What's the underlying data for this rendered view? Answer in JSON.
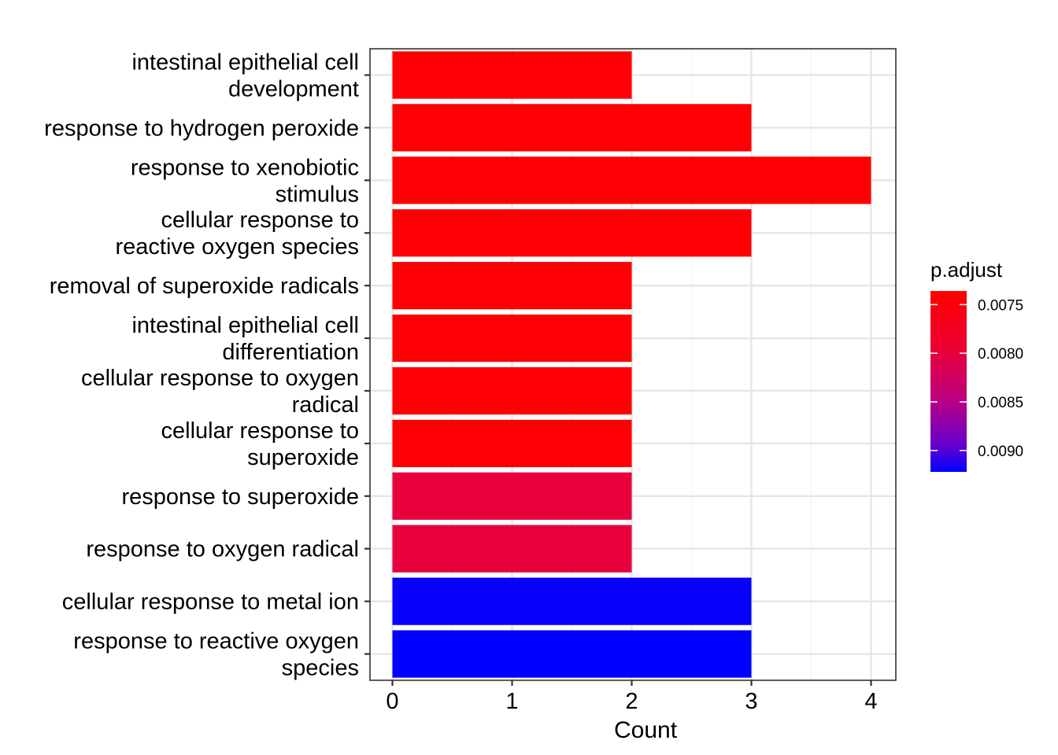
{
  "chart_data": {
    "type": "bar",
    "orientation": "horizontal",
    "xlabel": "Count",
    "ylabel": "",
    "xlim": [
      0,
      4.2
    ],
    "x_ticks": [
      0,
      1,
      2,
      3,
      4
    ],
    "grid": true,
    "legend_position": "right",
    "legend_title": "p.adjust",
    "legend_ticks": [
      {
        "value": 0.0075,
        "label": "0.0075"
      },
      {
        "value": 0.008,
        "label": "0.0080"
      },
      {
        "value": 0.0085,
        "label": "0.0085"
      },
      {
        "value": 0.009,
        "label": "0.0090"
      }
    ],
    "color_scale": {
      "min": 0.00736,
      "max": 0.00922,
      "low_color": "#FF0000",
      "high_color": "#0000FF"
    },
    "categories": [
      {
        "label": [
          "intestinal epithelial cell",
          "development"
        ],
        "count": 2,
        "p_adjust": 0.0074
      },
      {
        "label": [
          "response to hydrogen peroxide"
        ],
        "count": 3,
        "p_adjust": 0.0074
      },
      {
        "label": [
          "response to xenobiotic",
          "stimulus"
        ],
        "count": 4,
        "p_adjust": 0.0074
      },
      {
        "label": [
          "cellular response to",
          "reactive oxygen species"
        ],
        "count": 3,
        "p_adjust": 0.0074
      },
      {
        "label": [
          "removal of superoxide radicals"
        ],
        "count": 2,
        "p_adjust": 0.0074
      },
      {
        "label": [
          "intestinal epithelial cell",
          "differentiation"
        ],
        "count": 2,
        "p_adjust": 0.0074
      },
      {
        "label": [
          "cellular response to oxygen",
          "radical"
        ],
        "count": 2,
        "p_adjust": 0.0074
      },
      {
        "label": [
          "cellular response to",
          "superoxide"
        ],
        "count": 2,
        "p_adjust": 0.0074
      },
      {
        "label": [
          "response to superoxide"
        ],
        "count": 2,
        "p_adjust": 0.008
      },
      {
        "label": [
          "response to oxygen radical"
        ],
        "count": 2,
        "p_adjust": 0.008
      },
      {
        "label": [
          "cellular response to metal ion"
        ],
        "count": 3,
        "p_adjust": 0.0092
      },
      {
        "label": [
          "response to reactive oxygen",
          "species"
        ],
        "count": 3,
        "p_adjust": 0.00922
      }
    ]
  }
}
